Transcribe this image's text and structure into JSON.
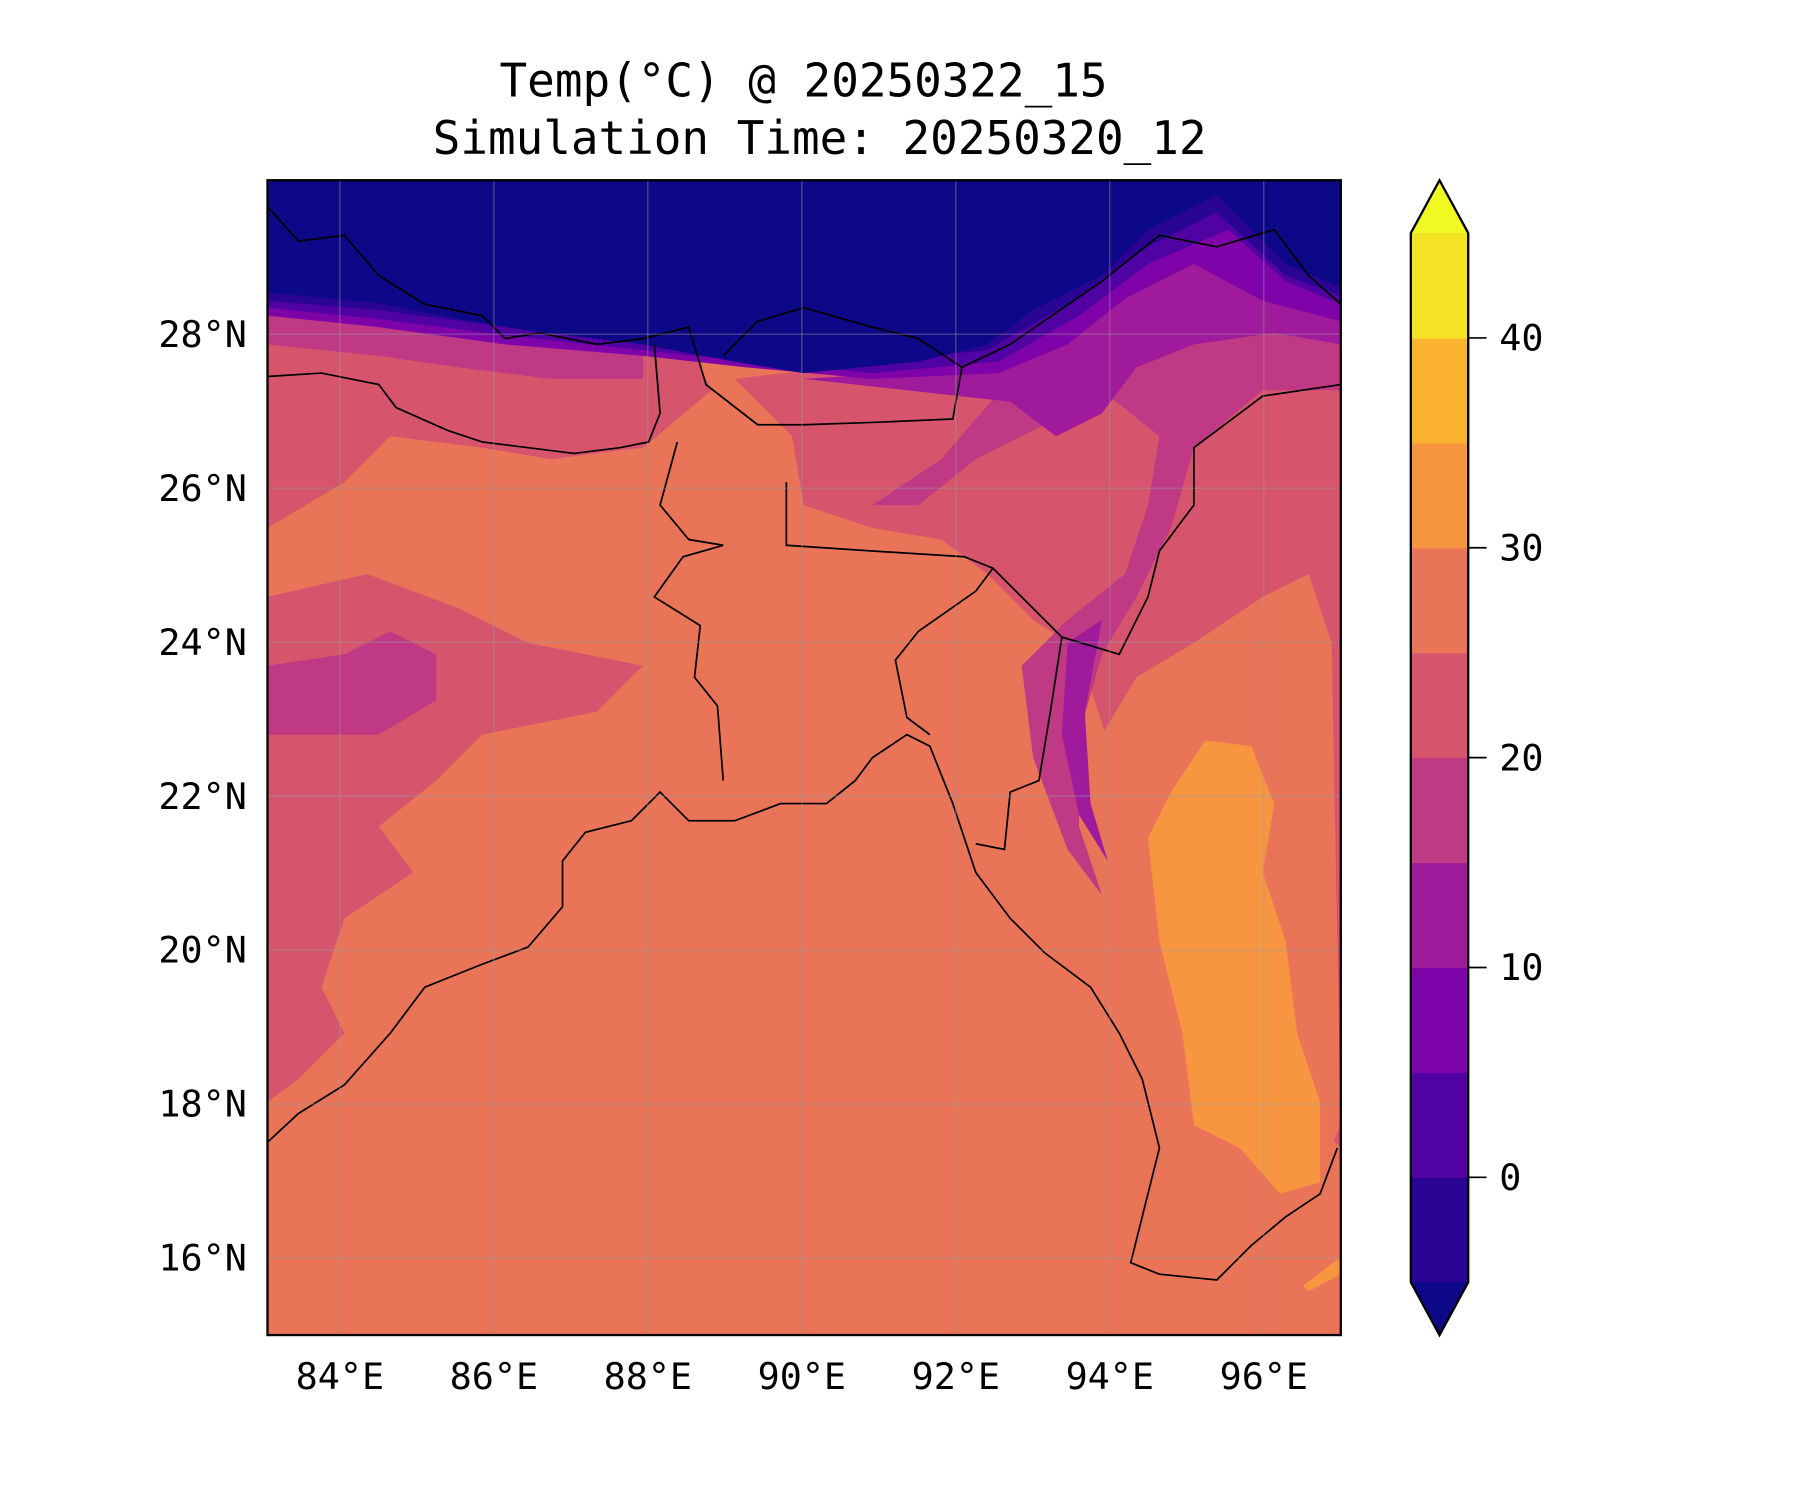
{
  "chart_data": {
    "type": "heatmap",
    "title": "Temp(°C) @ 20250322_15",
    "subtitle": "Simulation Time: 20250320_12",
    "xlabel": "",
    "ylabel": "",
    "xlim": [
      83.06,
      97.0
    ],
    "ylim": [
      15.0,
      30.0
    ],
    "x_ticks": [
      84,
      86,
      88,
      90,
      92,
      94,
      96
    ],
    "x_tick_labels": [
      "84°E",
      "86°E",
      "88°E",
      "90°E",
      "92°E",
      "94°E",
      "96°E"
    ],
    "y_ticks": [
      16,
      18,
      20,
      22,
      24,
      26,
      28
    ],
    "y_tick_labels": [
      "16°N",
      "18°N",
      "20°N",
      "22°N",
      "24°N",
      "26°N",
      "28°N"
    ],
    "grid": true,
    "colorbar": {
      "levels": [
        -5,
        0,
        5,
        10,
        15,
        20,
        25,
        30,
        35,
        40,
        45
      ],
      "colors": [
        "#2a0593",
        "#5002a2",
        "#7e03a8",
        "#a01a9c",
        "#bf3984",
        "#d6556d",
        "#ea7457",
        "#f89540",
        "#fbb32f",
        "#f4e225"
      ],
      "under_color": "#0d0887",
      "over_color": "#f0f921",
      "extend": "both",
      "ticks": [
        0,
        10,
        20,
        30,
        40
      ],
      "tick_labels": [
        "0",
        "10",
        "20",
        "30",
        "40"
      ],
      "placement": "right"
    },
    "dominant_values": {
      "bay_of_bengal": "25-30",
      "himalaya_north": "below -5",
      "central_myanmar": "30-35"
    }
  }
}
